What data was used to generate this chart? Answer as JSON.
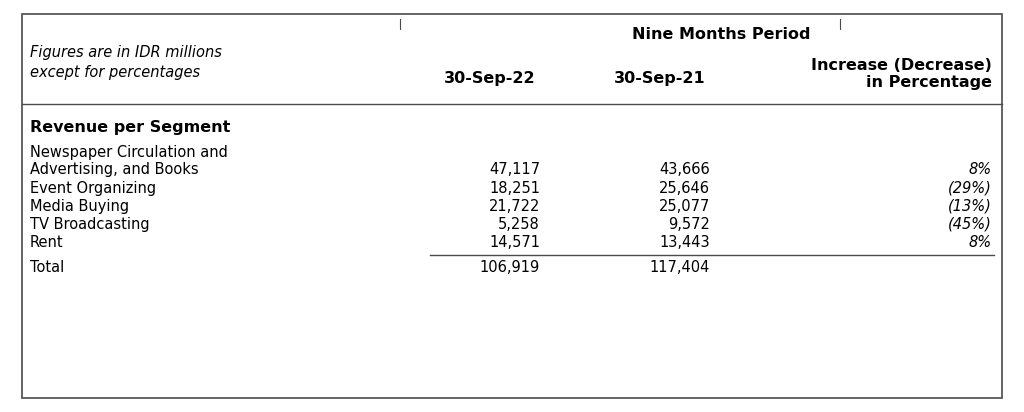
{
  "header_main": "Nine Months Period",
  "header_subtitle_line1": "Figures are in IDR millions",
  "header_subtitle_line2": "except for percentages",
  "col_header1": "30-Sep-22",
  "col_header2": "30-Sep-21",
  "col_header3_line1": "Increase (Decrease)",
  "col_header3_line2": "in Percentage",
  "section_header": "Revenue per Segment",
  "rows": [
    {
      "label1": "Newspaper Circulation and",
      "label2": "Advertising, and Books",
      "val1": "47,117",
      "val2": "43,666",
      "val3": "8%"
    },
    {
      "label1": "Event Organizing",
      "label2": "",
      "val1": "18,251",
      "val2": "25,646",
      "val3": "(29%)"
    },
    {
      "label1": "Media Buying",
      "label2": "",
      "val1": "21,722",
      "val2": "25,077",
      "val3": "(13%)"
    },
    {
      "label1": "TV Broadcasting",
      "label2": "",
      "val1": "5,258",
      "val2": "9,572",
      "val3": "(45%)"
    },
    {
      "label1": "Rent",
      "label2": "",
      "val1": "14,571",
      "val2": "13,443",
      "val3": "8%"
    }
  ],
  "total_label": "Total",
  "total_val1": "106,919",
  "total_val2": "117,404",
  "bg_color": "#ffffff",
  "border_color": "#4a4a4a",
  "text_color": "#000000",
  "figsize": [
    10.24,
    4.12
  ],
  "dpi": 100
}
